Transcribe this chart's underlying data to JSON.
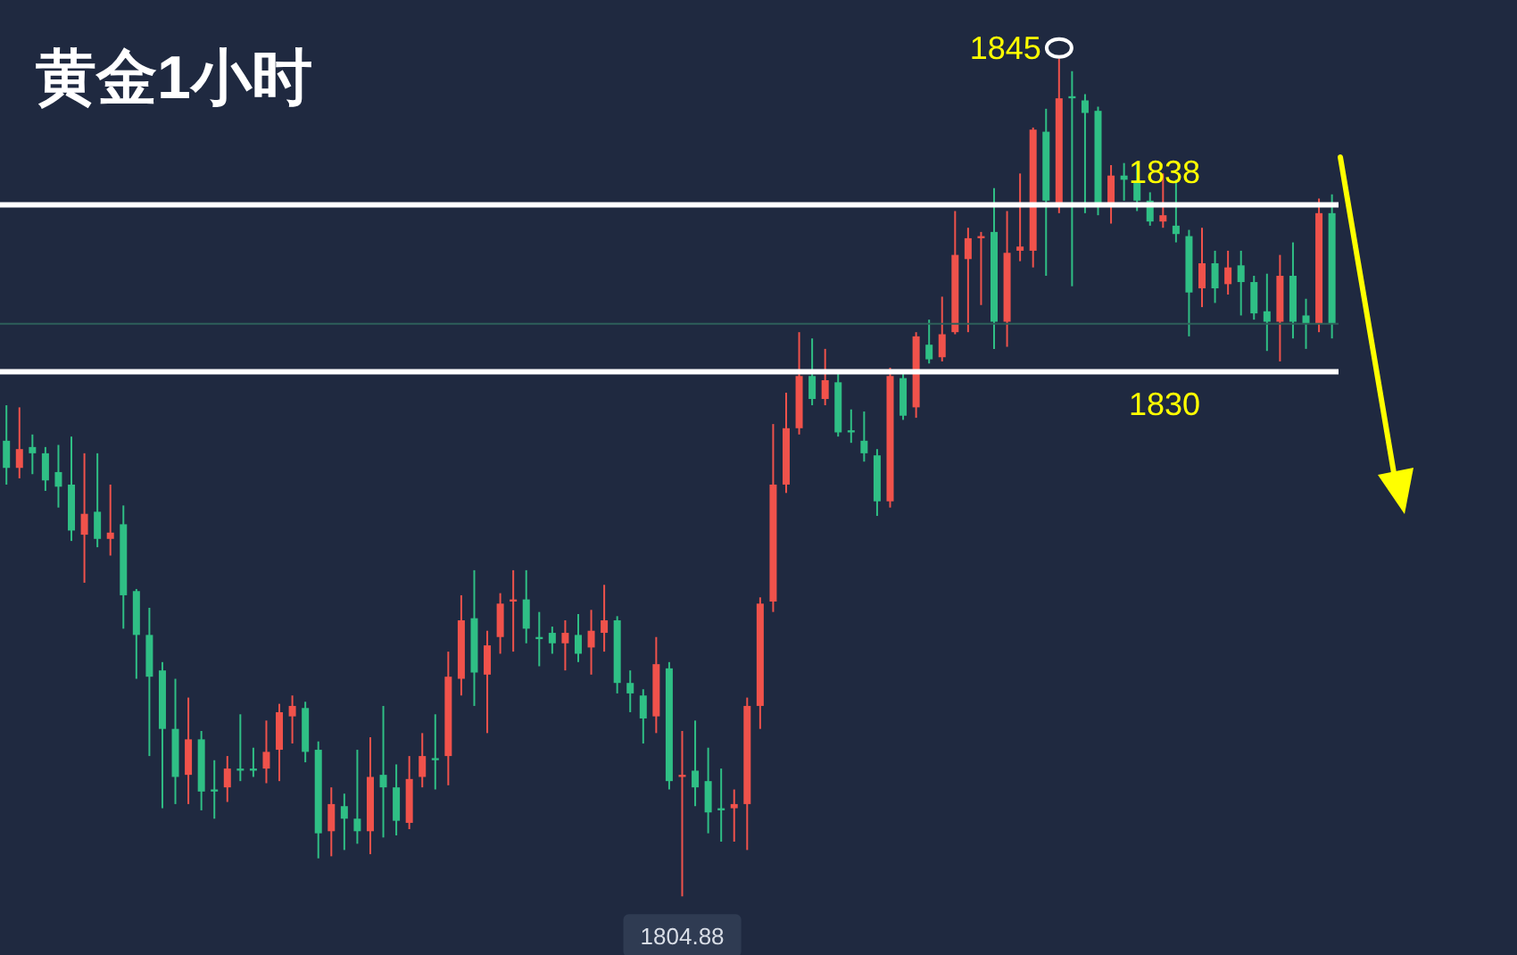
{
  "chart_data": {
    "type": "candlestick",
    "title": "黄金1小时",
    "tick_labels": false,
    "categories": [
      null,
      null,
      null,
      null,
      null,
      null,
      null,
      null,
      null,
      null,
      null,
      null,
      null,
      null,
      null,
      null,
      null,
      null,
      null,
      null,
      null,
      null,
      null,
      null,
      null,
      null,
      null,
      null,
      null,
      null,
      null,
      null,
      null,
      null,
      null,
      null,
      null,
      null,
      null,
      null,
      null,
      null,
      null,
      null,
      null,
      null,
      null,
      null,
      null,
      null,
      null,
      null,
      null,
      null,
      null,
      null,
      null,
      null,
      null,
      null,
      null,
      null,
      null,
      null,
      null,
      null,
      null,
      null,
      null,
      null,
      null,
      null,
      null,
      null,
      null,
      null,
      null,
      null,
      null,
      null,
      null,
      null,
      null,
      null,
      null,
      null,
      null,
      null,
      null,
      null,
      null,
      null,
      null,
      null,
      null,
      null,
      null,
      null,
      null,
      null,
      null,
      null,
      null
    ],
    "ohlc": [
      [
        1826.7,
        1828.4,
        1824.6,
        1825.4
      ],
      [
        1825.4,
        1828.3,
        1824.9,
        1826.3
      ],
      [
        1826.4,
        1827.0,
        1825.1,
        1826.1
      ],
      [
        1826.1,
        1826.4,
        1824.3,
        1824.8
      ],
      [
        1825.2,
        1826.5,
        1823.5,
        1824.5
      ],
      [
        1824.6,
        1826.9,
        1821.9,
        1822.4
      ],
      [
        1822.2,
        1826.1,
        1819.9,
        1823.2
      ],
      [
        1823.3,
        1826.1,
        1821.6,
        1822.0
      ],
      [
        1822.0,
        1824.6,
        1821.2,
        1822.3
      ],
      [
        1822.7,
        1823.6,
        1817.7,
        1819.3
      ],
      [
        1819.5,
        1819.6,
        1815.3,
        1817.4
      ],
      [
        1817.4,
        1818.7,
        1811.6,
        1815.4
      ],
      [
        1815.7,
        1816.1,
        1809.1,
        1812.9
      ],
      [
        1812.9,
        1815.3,
        1809.3,
        1810.6
      ],
      [
        1810.7,
        1814.4,
        1809.3,
        1812.4
      ],
      [
        1812.4,
        1812.8,
        1809.0,
        1809.9
      ],
      [
        1810.0,
        1811.4,
        1808.6,
        1809.9
      ],
      [
        1810.1,
        1811.6,
        1809.4,
        1811.0
      ],
      [
        1811.0,
        1813.6,
        1810.4,
        1810.9
      ],
      [
        1811.0,
        1812.0,
        1810.6,
        1810.9
      ],
      [
        1811.0,
        1813.3,
        1810.3,
        1811.8
      ],
      [
        1811.9,
        1814.1,
        1810.4,
        1813.7
      ],
      [
        1813.5,
        1814.5,
        1812.2,
        1814.0
      ],
      [
        1813.9,
        1814.2,
        1811.3,
        1811.8
      ],
      [
        1811.9,
        1812.3,
        1806.7,
        1807.9
      ],
      [
        1808.0,
        1810.1,
        1806.8,
        1809.3
      ],
      [
        1809.2,
        1809.8,
        1807.1,
        1808.6
      ],
      [
        1808.6,
        1811.9,
        1807.4,
        1808.0
      ],
      [
        1808.0,
        1812.5,
        1806.9,
        1810.6
      ],
      [
        1810.7,
        1814.0,
        1807.7,
        1810.1
      ],
      [
        1810.1,
        1811.2,
        1807.8,
        1808.5
      ],
      [
        1808.4,
        1811.6,
        1808.1,
        1810.5
      ],
      [
        1810.6,
        1812.7,
        1810.1,
        1811.6
      ],
      [
        1811.5,
        1813.6,
        1810.0,
        1811.4
      ],
      [
        1811.6,
        1816.6,
        1810.2,
        1815.4
      ],
      [
        1815.3,
        1819.3,
        1814.5,
        1818.1
      ],
      [
        1818.2,
        1820.5,
        1814.0,
        1815.6
      ],
      [
        1815.5,
        1817.6,
        1812.7,
        1816.9
      ],
      [
        1817.3,
        1819.4,
        1816.5,
        1818.9
      ],
      [
        1819.0,
        1820.5,
        1816.6,
        1819.1
      ],
      [
        1819.1,
        1820.5,
        1817.0,
        1817.7
      ],
      [
        1817.3,
        1818.5,
        1815.9,
        1817.2
      ],
      [
        1817.5,
        1817.8,
        1816.5,
        1817.0
      ],
      [
        1817.0,
        1818.1,
        1815.7,
        1817.5
      ],
      [
        1817.4,
        1818.4,
        1816.1,
        1816.5
      ],
      [
        1816.8,
        1818.6,
        1815.5,
        1817.6
      ],
      [
        1817.5,
        1819.8,
        1816.6,
        1818.1
      ],
      [
        1818.1,
        1818.3,
        1814.6,
        1815.1
      ],
      [
        1815.1,
        1815.7,
        1813.7,
        1814.6
      ],
      [
        1814.5,
        1814.8,
        1812.2,
        1813.4
      ],
      [
        1813.5,
        1817.3,
        1812.7,
        1816.0
      ],
      [
        1815.8,
        1816.1,
        1810.0,
        1810.4
      ],
      [
        1810.6,
        1812.8,
        1804.88,
        1810.7
      ],
      [
        1810.9,
        1813.3,
        1809.2,
        1810.1
      ],
      [
        1810.4,
        1812.0,
        1807.9,
        1808.9
      ],
      [
        1809.1,
        1811.0,
        1807.5,
        1809.0
      ],
      [
        1809.1,
        1810.0,
        1807.5,
        1809.3
      ],
      [
        1809.3,
        1814.4,
        1807.1,
        1814.0
      ],
      [
        1814.0,
        1819.2,
        1812.9,
        1818.9
      ],
      [
        1819.0,
        1827.5,
        1818.5,
        1824.6
      ],
      [
        1824.6,
        1829.0,
        1824.2,
        1827.3
      ],
      [
        1827.3,
        1831.9,
        1827.0,
        1829.8
      ],
      [
        1829.8,
        1831.6,
        1828.4,
        1828.7
      ],
      [
        1828.7,
        1831.1,
        1828.4,
        1829.6
      ],
      [
        1829.5,
        1830.0,
        1826.9,
        1827.1
      ],
      [
        1827.2,
        1828.2,
        1826.6,
        1827.1
      ],
      [
        1826.7,
        1828.1,
        1825.7,
        1826.1
      ],
      [
        1826.0,
        1826.3,
        1823.1,
        1823.8
      ],
      [
        1823.8,
        1830.2,
        1823.5,
        1829.8
      ],
      [
        1829.7,
        1830.0,
        1827.7,
        1827.9
      ],
      [
        1828.3,
        1831.9,
        1827.8,
        1831.7
      ],
      [
        1831.3,
        1832.5,
        1830.4,
        1830.6
      ],
      [
        1830.7,
        1833.6,
        1830.5,
        1831.8
      ],
      [
        1831.9,
        1837.7,
        1831.8,
        1835.6
      ],
      [
        1835.4,
        1836.9,
        1831.9,
        1836.4
      ],
      [
        1836.4,
        1836.7,
        1833.2,
        1836.5
      ],
      [
        1836.7,
        1838.8,
        1831.1,
        1832.4
      ],
      [
        1832.4,
        1837.7,
        1831.2,
        1835.7
      ],
      [
        1835.8,
        1839.5,
        1835.3,
        1836.0
      ],
      [
        1835.8,
        1841.7,
        1835.0,
        1841.6
      ],
      [
        1841.5,
        1842.6,
        1834.6,
        1838.2
      ],
      [
        1838.1,
        1845,
        1837.6,
        1843.1
      ],
      [
        1843.2,
        1844.4,
        1834.1,
        1843.1
      ],
      [
        1843.0,
        1843.3,
        1837.6,
        1842.4
      ],
      [
        1842.5,
        1842.7,
        1837.5,
        1838.0
      ],
      [
        1838.1,
        1839.9,
        1837.1,
        1839.4
      ],
      [
        1839.4,
        1840.0,
        1838.2,
        1839.2
      ],
      [
        1839.1,
        1840.0,
        1837.7,
        1838.2
      ],
      [
        1838.2,
        1838.6,
        1837.0,
        1837.2
      ],
      [
        1837.2,
        1839.5,
        1836.9,
        1837.5
      ],
      [
        1837.0,
        1839.2,
        1836.2,
        1836.6
      ],
      [
        1836.5,
        1836.8,
        1831.7,
        1833.8
      ],
      [
        1834.0,
        1836.9,
        1833.1,
        1835.2
      ],
      [
        1835.2,
        1835.8,
        1833.3,
        1834.0
      ],
      [
        1834.2,
        1835.8,
        1833.7,
        1835.0
      ],
      [
        1835.1,
        1835.8,
        1832.7,
        1834.3
      ],
      [
        1834.3,
        1834.6,
        1832.5,
        1832.8
      ],
      [
        1832.9,
        1834.7,
        1831.0,
        1832.4
      ],
      [
        1832.4,
        1835.6,
        1830.5,
        1834.6
      ],
      [
        1834.6,
        1836.2,
        1831.6,
        1832.4
      ],
      [
        1832.7,
        1833.5,
        1831.1,
        1832.3
      ],
      [
        1832.3,
        1838.3,
        1831.9,
        1837.6
      ],
      [
        1837.6,
        1838.5,
        1831.6,
        1832.3
      ]
    ],
    "colors": [
      "#2fbf85",
      "#f0524b",
      "#2fbf85",
      "#2fbf85",
      "#2fbf85",
      "#2fbf85",
      "#f0524b",
      "#2fbf85",
      "#f0524b",
      "#2fbf85",
      "#2fbf85",
      "#2fbf85",
      "#2fbf85",
      "#2fbf85",
      "#f0524b",
      "#2fbf85",
      "#2fbf85",
      "#f0524b",
      "#2fbf85",
      "#2fbf85",
      "#f0524b",
      "#f0524b",
      "#f0524b",
      "#2fbf85",
      "#2fbf85",
      "#f0524b",
      "#2fbf85",
      "#2fbf85",
      "#f0524b",
      "#2fbf85",
      "#2fbf85",
      "#f0524b",
      "#f0524b",
      "#2fbf85",
      "#f0524b",
      "#f0524b",
      "#2fbf85",
      "#f0524b",
      "#f0524b",
      "#f0524b",
      "#2fbf85",
      "#2fbf85",
      "#2fbf85",
      "#f0524b",
      "#2fbf85",
      "#f0524b",
      "#f0524b",
      "#2fbf85",
      "#2fbf85",
      "#2fbf85",
      "#f0524b",
      "#2fbf85",
      "#f0524b",
      "#2fbf85",
      "#2fbf85",
      "#2fbf85",
      "#f0524b",
      "#f0524b",
      "#f0524b",
      "#f0524b",
      "#f0524b",
      "#f0524b",
      "#2fbf85",
      "#f0524b",
      "#2fbf85",
      "#2fbf85",
      "#2fbf85",
      "#2fbf85",
      "#f0524b",
      "#2fbf85",
      "#f0524b",
      "#2fbf85",
      "#f0524b",
      "#f0524b",
      "#f0524b",
      "#f0524b",
      "#2fbf85",
      "#f0524b",
      "#f0524b",
      "#f0524b",
      "#2fbf85",
      "#f0524b",
      "#2fbf85",
      "#2fbf85",
      "#2fbf85",
      "#f0524b",
      "#2fbf85",
      "#2fbf85",
      "#2fbf85",
      "#f0524b",
      "#2fbf85",
      "#2fbf85",
      "#f0524b",
      "#2fbf85",
      "#f0524b",
      "#2fbf85",
      "#2fbf85",
      "#2fbf85",
      "#f0524b",
      "#2fbf85",
      "#2fbf85",
      "#f0524b",
      "#2fbf85"
    ],
    "ref_lines": [
      {
        "axis": "y",
        "value": 1838,
        "label": "1838",
        "color": "#ffffff"
      },
      {
        "axis": "y",
        "value": 1830,
        "label": "1830",
        "color": "#ffffff"
      },
      {
        "axis": "y",
        "value": 1832.3,
        "color": "#2e5f5a"
      }
    ],
    "annotations": [
      "1845",
      "1804.88"
    ]
  }
}
